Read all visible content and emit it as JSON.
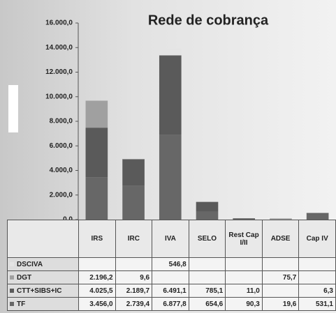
{
  "chart_data": {
    "type": "bar",
    "stacked": true,
    "title": "Rede de cobrança",
    "categories": [
      "IRS",
      "IRC",
      "IVA",
      "SELO",
      "Rest Cap I/II",
      "ADSE",
      "Cap IV"
    ],
    "series": [
      {
        "name": "TF",
        "color": "#676767",
        "values": [
          3456.0,
          2739.4,
          6877.8,
          654.6,
          90.3,
          19.6,
          531.1
        ],
        "value_labels": [
          "3.456,0",
          "2.739,4",
          "6.877,8",
          "654,6",
          "90,3",
          "19,6",
          "531,1"
        ]
      },
      {
        "name": "CTT+SIBS+IC",
        "color": "#5a5a5a",
        "values": [
          4025.5,
          2189.7,
          6491.1,
          785.1,
          11.0,
          null,
          6.3
        ],
        "value_labels": [
          "4.025,5",
          "2.189,7",
          "6.491,1",
          "785,1",
          "11,0",
          null,
          "6,3"
        ]
      },
      {
        "name": "DGT",
        "color": "#a0a0a0",
        "values": [
          2196.2,
          9.6,
          null,
          null,
          null,
          75.7,
          null
        ],
        "value_labels": [
          "2.196,2",
          "9,6",
          null,
          null,
          null,
          "75,7",
          null
        ]
      },
      {
        "name": "DSCIVA",
        "color": "#e4e4e4",
        "values": [
          null,
          null,
          546.8,
          null,
          null,
          null,
          null
        ],
        "value_labels": [
          null,
          null,
          "546,8",
          null,
          null,
          null,
          null
        ]
      }
    ],
    "ylim": [
      0,
      16000
    ],
    "yticks": [
      {
        "value": 0,
        "label": "0,0"
      },
      {
        "value": 2000,
        "label": "2.000,0"
      },
      {
        "value": 4000,
        "label": "4.000,0"
      },
      {
        "value": 6000,
        "label": "6.000,0"
      },
      {
        "value": 8000,
        "label": "8.000,0"
      },
      {
        "value": 10000,
        "label": "10.000,0"
      },
      {
        "value": 12000,
        "label": "12.000,0"
      },
      {
        "value": 14000,
        "label": "14.000,0"
      },
      {
        "value": 16000,
        "label": "16.000,0"
      }
    ]
  }
}
